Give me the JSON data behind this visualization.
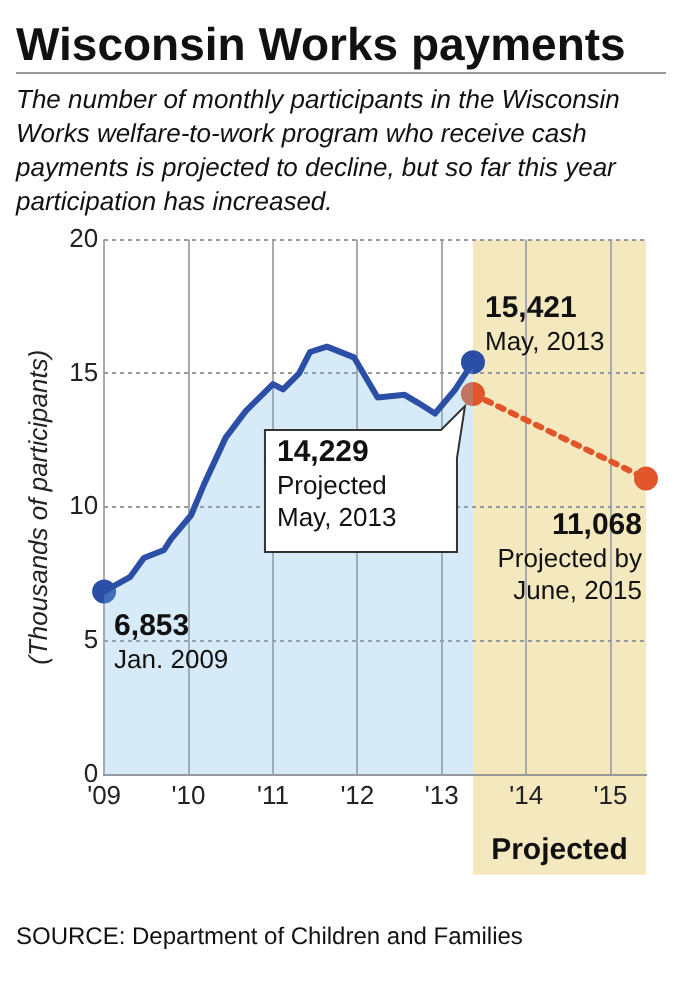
{
  "chart_data": {
    "type": "area",
    "title": "Wisconsin Works payments",
    "subtitle": "The number of monthly participants in the Wisconsin Works welfare-to-work program who receive cash payments is projected to decline, but so far this year participation has increased.",
    "ylabel": "(Thousands of participants)",
    "xlim": [
      2009,
      2015.42
    ],
    "xticks": [
      {
        "value": 2009,
        "label": "'09"
      },
      {
        "value": 2010,
        "label": "'10"
      },
      {
        "value": 2011,
        "label": "'11"
      },
      {
        "value": 2012,
        "label": "'12"
      },
      {
        "value": 2013,
        "label": "'13"
      },
      {
        "value": 2014,
        "label": "'14"
      },
      {
        "value": 2015,
        "label": "'15"
      }
    ],
    "ylim": [
      0,
      20
    ],
    "yticks": [
      0,
      5,
      10,
      15,
      20
    ],
    "grid": true,
    "series": [
      {
        "type": "area",
        "color": "#2b4fa6",
        "marker": "none",
        "x": [
          2009,
          2009.31,
          2009.47,
          2009.71,
          2009.79,
          2010.03,
          2010.19,
          2010.44,
          2010.68,
          2011.0,
          2011.12,
          2011.31,
          2011.44,
          2011.64,
          2011.96,
          2012.24,
          2012.56,
          2012.72,
          2012.92,
          2013.16,
          2013.37
        ],
        "values": [
          6.853,
          7.4,
          8.1,
          8.4,
          8.8,
          9.7,
          10.9,
          12.6,
          13.6,
          14.6,
          14.4,
          15.0,
          15.8,
          16.0,
          15.6,
          14.1,
          14.2,
          13.9,
          13.5,
          14.4,
          15.421
        ]
      },
      {
        "type": "scatter",
        "color": "#2b4fa6",
        "marker": "circle",
        "x": [
          2009,
          2013.37
        ],
        "values": [
          6.853,
          15.421
        ]
      },
      {
        "type": "line",
        "color": "#e0562a",
        "marker": "circle",
        "line_style": "dotted",
        "x": [
          2013.37,
          2015.42
        ],
        "values": [
          14.229,
          11.068
        ]
      }
    ],
    "bands": [
      {
        "axis": "x",
        "from": 2013.37,
        "to": 2015.42,
        "label": "Projected",
        "color": "#f4e8bf"
      }
    ],
    "annotations": [
      {
        "text": "15,421\nMay, 2013",
        "x": 2013.37,
        "y": 15.421
      },
      {
        "text": "14,229\nProjected\nMay, 2013",
        "x": 2013.37,
        "y": 14.229
      },
      {
        "text": "11,068\nProjected by\nJune, 2015",
        "x": 2015.42,
        "y": 11.068
      },
      {
        "text": "6,853\nJan. 2009",
        "x": 2009,
        "y": 6.853
      },
      "SOURCE: Department of Children and Families"
    ]
  }
}
